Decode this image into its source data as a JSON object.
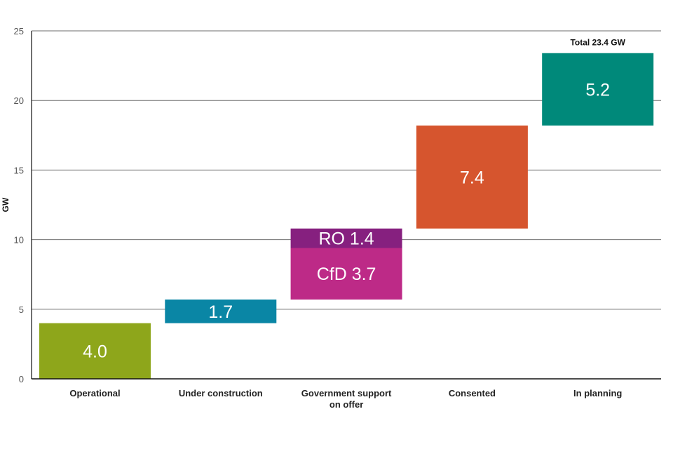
{
  "chart_data": {
    "type": "bar",
    "subtype": "waterfall",
    "title": "",
    "xlabel": "",
    "ylabel": "GW",
    "ylim": [
      0,
      25
    ],
    "yticks": [
      0,
      5,
      10,
      15,
      20,
      25
    ],
    "grid": true,
    "legend": "none",
    "categories": [
      "Operational",
      "Under construction",
      "Government support on offer",
      "Consented",
      "In planning"
    ],
    "category_lines": [
      [
        "Operational"
      ],
      [
        "Under construction"
      ],
      [
        "Government support",
        "on offer"
      ],
      [
        "Consented"
      ],
      [
        "In planning"
      ]
    ],
    "segments": [
      {
        "category": "Operational",
        "label": "4.0",
        "value": 4.0,
        "base": 0.0,
        "color": "#8ea61b"
      },
      {
        "category": "Under construction",
        "label": "1.7",
        "value": 1.7,
        "base": 4.0,
        "color": "#0a86a5"
      },
      {
        "category": "Government support on offer",
        "label": "CfD 3.7",
        "value": 3.7,
        "base": 5.7,
        "color": "#bd2a87"
      },
      {
        "category": "Government support on offer",
        "label": "RO 1.4",
        "value": 1.4,
        "base": 9.4,
        "color": "#86207f"
      },
      {
        "category": "Consented",
        "label": "7.4",
        "value": 7.4,
        "base": 10.8,
        "color": "#d6552e"
      },
      {
        "category": "In planning",
        "label": "5.2",
        "value": 5.2,
        "base": 18.2,
        "color": "#00897a"
      }
    ],
    "annotations": [
      {
        "text": "Total 23.4 GW",
        "category": "In planning",
        "value": 23.4
      }
    ]
  }
}
